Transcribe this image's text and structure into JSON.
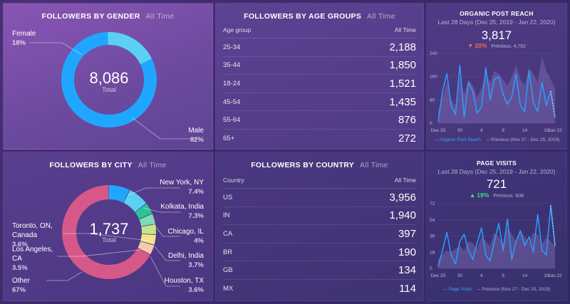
{
  "gender": {
    "title": "FOLLOWERS BY GENDER",
    "period": "All Time",
    "total": "8,086",
    "total_label": "Total",
    "female_label": "Female",
    "female_pct": "18%",
    "male_label": "Male",
    "male_pct": "82%"
  },
  "age": {
    "title": "FOLLOWERS BY AGE GROUPS",
    "period": "All Time",
    "col_key": "Age group",
    "col_val": "All Time",
    "rows": [
      {
        "k": "25-34",
        "v": "2,188"
      },
      {
        "k": "35-44",
        "v": "1,850"
      },
      {
        "k": "18-24",
        "v": "1,521"
      },
      {
        "k": "45-54",
        "v": "1,435"
      },
      {
        "k": "55-64",
        "v": "876"
      },
      {
        "k": "65+",
        "v": "272"
      }
    ]
  },
  "reach": {
    "title": "ORGANIC POST REACH",
    "range": "Last 28 Days (Dec 25, 2019 - Jan 22, 2020)",
    "value": "3,817",
    "delta": "20%",
    "previous": "Previous: 4,762",
    "yticks": [
      "240",
      "160",
      "80",
      "0"
    ],
    "xticks": [
      "Dec 25",
      "30",
      "4",
      "9",
      "14",
      "19",
      "Jan 22"
    ],
    "legend_current": "Organic Post Reach",
    "legend_previous": "Previous (Nov 27 - Dec 25, 2019)",
    "series": [
      5,
      110,
      170,
      60,
      30,
      200,
      20,
      140,
      110,
      35,
      55,
      190,
      80,
      150,
      160,
      100,
      65,
      90,
      170,
      60,
      40,
      180,
      70,
      40,
      140,
      60,
      110,
      20
    ],
    "previous_series": [
      40,
      90,
      140,
      80,
      60,
      160,
      100,
      150,
      130,
      90,
      120,
      170,
      140,
      180,
      170,
      150,
      130,
      160,
      200,
      150,
      130,
      190,
      170,
      140,
      230,
      180,
      150,
      120
    ]
  },
  "city": {
    "title": "FOLLOWERS BY CITY",
    "period": "All Time",
    "total": "1,737",
    "total_label": "Total",
    "items": [
      {
        "name": "New York, NY",
        "pct": "7.4%"
      },
      {
        "name": "Kolkata, India",
        "pct": "7.3%"
      },
      {
        "name": "Chicago, IL",
        "pct": "4%"
      },
      {
        "name": "Delhi, India",
        "pct": "3.7%"
      },
      {
        "name": "Houston, TX",
        "pct": "3.6%"
      },
      {
        "name": "Toronto, ON, Canada",
        "pct": "3.6%"
      },
      {
        "name": "Los Angeles, CA",
        "pct": "3.5%"
      },
      {
        "name": "Other",
        "pct": "67%"
      }
    ]
  },
  "country": {
    "title": "FOLLOWERS BY COUNTRY",
    "period": "All Time",
    "col_key": "Country",
    "col_val": "All Time",
    "rows": [
      {
        "k": "US",
        "v": "3,956"
      },
      {
        "k": "IN",
        "v": "1,940"
      },
      {
        "k": "CA",
        "v": "397"
      },
      {
        "k": "BR",
        "v": "190"
      },
      {
        "k": "GB",
        "v": "134"
      },
      {
        "k": "MX",
        "v": "114"
      }
    ]
  },
  "visits": {
    "title": "PAGE VISITS",
    "range": "Last 28 Days (Dec 25, 2019 - Jan 22, 2020)",
    "value": "721",
    "delta": "19%",
    "previous": "Previous: 608",
    "yticks": [
      "72",
      "54",
      "36",
      "18",
      "0"
    ],
    "xticks": [
      "Dec 25",
      "30",
      "4",
      "9",
      "14",
      "19",
      "Jan 22"
    ],
    "legend_current": "Page Visits",
    "legend_previous": "Previous (Nov 27 - Dec 25, 2019)",
    "series": [
      2,
      20,
      40,
      15,
      5,
      30,
      38,
      20,
      10,
      28,
      45,
      15,
      8,
      30,
      50,
      20,
      55,
      10,
      30,
      42,
      25,
      35,
      18,
      60,
      20,
      15,
      70,
      25
    ],
    "previous_series": [
      10,
      15,
      20,
      18,
      22,
      25,
      20,
      30,
      28,
      22,
      35,
      30,
      25,
      40,
      35,
      28,
      45,
      38,
      30,
      42,
      35,
      30,
      40,
      38,
      28,
      35,
      30,
      25
    ]
  },
  "colors": {
    "male": "#1fa7ff",
    "female": "#5ccff5",
    "other": "#d65889",
    "ny": "#1fa7ff",
    "kolkata": "#5ccff5",
    "chicago": "#27c494",
    "delhi": "#7fdbb4",
    "houston": "#c3e58a",
    "toronto": "#f1e58a",
    "losangeles": "#f7c9ad",
    "line": "#2e9bff"
  }
}
